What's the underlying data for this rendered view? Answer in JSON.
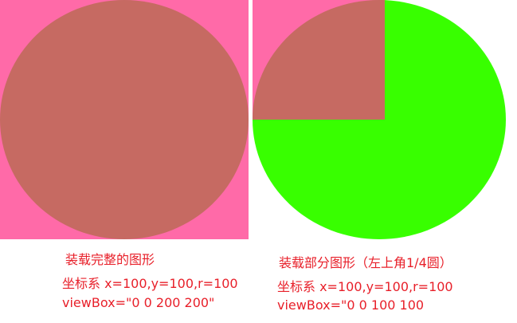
{
  "colors": {
    "canvas_pink": "#ff6aa8",
    "circle_brown": "#c66a62",
    "circle_green": "#38ff00",
    "caption_red": "#e8202a"
  },
  "left_example": {
    "title": "装载完整的图形",
    "coords": "坐标系 x=100,y=100,r=100",
    "viewbox": "viewBox=\"0 0 200 200\""
  },
  "right_example": {
    "title": "装载部分图形（左上角1/4圆）",
    "coords": "坐标系 x=100,y=100,r=100",
    "viewbox": "viewBox=\"0 0 100 100"
  }
}
